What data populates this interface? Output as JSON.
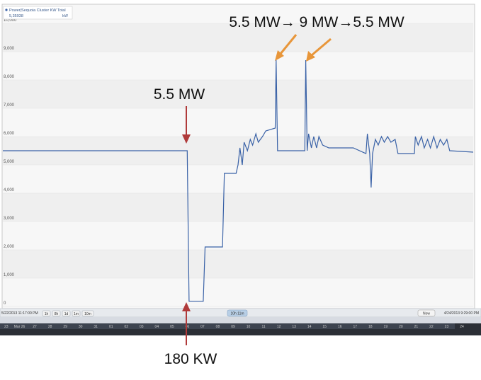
{
  "legend": {
    "series_label": "Power|Sequoia Cluster KW Total",
    "value": "5,35938",
    "unit": "kW"
  },
  "annotations": {
    "top": "5.5 MW→ 9 MW→5.5 MW",
    "left": "5.5 MW",
    "bottom": "180 KW"
  },
  "controls": {
    "start_time": "5/22/2013 11:17:00 PM",
    "end_time": "4/24/2013 9:29:00 PM",
    "zoom_buttons": [
      "1h",
      "8h",
      "1d",
      "1m",
      "10m"
    ],
    "range_label": "10h 11m",
    "now_label": "Now"
  },
  "timeline": {
    "labels": [
      "23",
      "Mar 26",
      "27",
      "28",
      "29",
      "30",
      "31",
      "01",
      "02",
      "03",
      "04",
      "05",
      "06",
      "07",
      "08",
      "09",
      "10",
      "11",
      "12",
      "13",
      "14",
      "15",
      "16",
      "17",
      "18",
      "19",
      "20",
      "21",
      "22",
      "23",
      "24"
    ]
  },
  "colors": {
    "line": "#3a62a7",
    "red_arrow": "#b03a3a",
    "orange_arrow": "#e8963a",
    "grid": "#e4e4e4",
    "panel_bg": "#f7f7f7"
  },
  "chart_data": {
    "type": "line",
    "ylim": [
      0,
      10000
    ],
    "y_ticks": [
      "0",
      "1,000",
      "2,000",
      "3,000",
      "4,000",
      "5,000",
      "6,000",
      "7,000",
      "8,000",
      "9,000",
      "10,000"
    ],
    "x_range": [
      0,
      100
    ],
    "grid": true,
    "series": [
      {
        "points": [
          [
            0,
            5500
          ],
          [
            39.2,
            5500
          ],
          [
            39.6,
            180
          ],
          [
            42.6,
            180
          ],
          [
            43.0,
            2100
          ],
          [
            46.7,
            2100
          ],
          [
            47.1,
            4700
          ],
          [
            49.6,
            4700
          ],
          [
            50.0,
            5000
          ],
          [
            50.4,
            5600
          ],
          [
            50.9,
            5000
          ],
          [
            51.3,
            5800
          ],
          [
            52.0,
            5500
          ],
          [
            52.6,
            5900
          ],
          [
            53.1,
            5700
          ],
          [
            53.8,
            6100
          ],
          [
            54.3,
            5800
          ],
          [
            55.2,
            6000
          ],
          [
            55.9,
            6200
          ],
          [
            57.9,
            6300
          ],
          [
            58.1,
            8700
          ],
          [
            58.4,
            5500
          ],
          [
            64.2,
            5500
          ],
          [
            64.4,
            8700
          ],
          [
            64.7,
            5500
          ],
          [
            65.0,
            6100
          ],
          [
            65.6,
            5600
          ],
          [
            66.1,
            6000
          ],
          [
            66.7,
            5600
          ],
          [
            67.2,
            6000
          ],
          [
            68.0,
            5700
          ],
          [
            69.3,
            5600
          ],
          [
            74.5,
            5600
          ],
          [
            77.2,
            5400
          ],
          [
            77.5,
            6100
          ],
          [
            78.0,
            5400
          ],
          [
            78.3,
            4200
          ],
          [
            78.6,
            5400
          ],
          [
            79.2,
            5900
          ],
          [
            79.8,
            5700
          ],
          [
            80.5,
            6000
          ],
          [
            81.1,
            5800
          ],
          [
            81.8,
            6000
          ],
          [
            82.5,
            5800
          ],
          [
            83.4,
            5900
          ],
          [
            84.0,
            5400
          ],
          [
            87.5,
            5400
          ],
          [
            87.7,
            6000
          ],
          [
            88.3,
            5700
          ],
          [
            89.0,
            6000
          ],
          [
            89.6,
            5600
          ],
          [
            90.3,
            5900
          ],
          [
            90.9,
            5600
          ],
          [
            91.6,
            6000
          ],
          [
            92.3,
            5600
          ],
          [
            93.0,
            5900
          ],
          [
            93.7,
            5700
          ],
          [
            94.4,
            5900
          ],
          [
            95.0,
            5500
          ],
          [
            100,
            5450
          ]
        ]
      }
    ]
  }
}
